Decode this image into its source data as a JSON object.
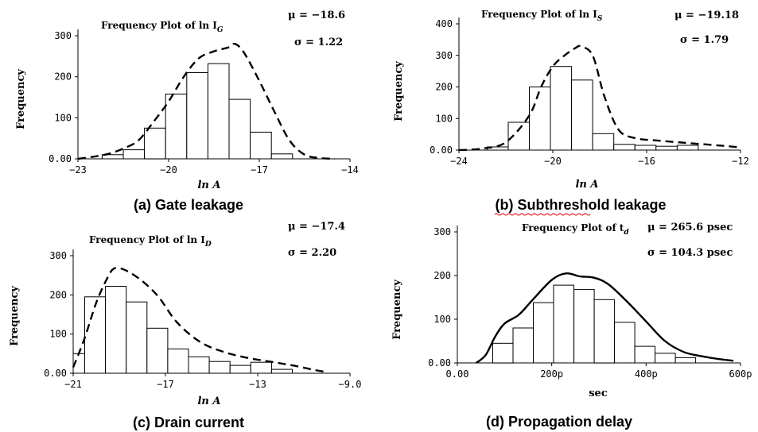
{
  "chart_data": [
    {
      "type": "bar",
      "panel": "a",
      "title": "Frequency Plot of ln I",
      "title_sub": "G",
      "ylabel": "Frequency",
      "xlabel": "ln A",
      "caption": "(a) Gate leakage",
      "stats": [
        "μ = −18.6",
        "σ = 1.22"
      ],
      "xlim": [
        -23,
        -14
      ],
      "ylim": [
        0,
        300
      ],
      "xticks": [
        -23,
        -20,
        -17,
        -14
      ],
      "xtick_labels": [
        "−23",
        "−20",
        "−17",
        "−14"
      ],
      "yticks": [
        0,
        100,
        200,
        300
      ],
      "ytick_labels": [
        "0.00",
        "100",
        "200",
        "300"
      ],
      "bin_edges": [
        -22.2,
        -21.5,
        -20.8,
        -20.1,
        -19.4,
        -18.7,
        -18.0,
        -17.3,
        -16.6,
        -15.9
      ],
      "values": [
        10,
        22,
        75,
        158,
        210,
        232,
        145,
        65,
        12
      ],
      "curve_style": "dashed",
      "curve": [
        [
          -23,
          0
        ],
        [
          -22.5,
          5
        ],
        [
          -22,
          12
        ],
        [
          -21.5,
          25
        ],
        [
          -21,
          45
        ],
        [
          -20.5,
          90
        ],
        [
          -20,
          140
        ],
        [
          -19.5,
          200
        ],
        [
          -19,
          245
        ],
        [
          -18.5,
          262
        ],
        [
          -18,
          272
        ],
        [
          -17.8,
          280
        ],
        [
          -17.5,
          258
        ],
        [
          -17,
          190
        ],
        [
          -16.5,
          115
        ],
        [
          -16,
          45
        ],
        [
          -15.5,
          10
        ],
        [
          -15,
          2
        ],
        [
          -14.5,
          0
        ]
      ]
    },
    {
      "type": "bar",
      "panel": "b",
      "title": "Frequency Plot of ln I",
      "title_sub": "S",
      "ylabel": "Frequency",
      "xlabel": "ln A",
      "caption": "(b) Subthreshold leakage",
      "stats": [
        "μ = −19.18",
        "σ = 1.79"
      ],
      "xlim": [
        -24,
        -12
      ],
      "ylim": [
        0,
        400
      ],
      "xticks": [
        -24,
        -20,
        -16,
        -12
      ],
      "xtick_labels": [
        "−24",
        "−20",
        "−16",
        "−12"
      ],
      "yticks": [
        0,
        100,
        200,
        300,
        400
      ],
      "ytick_labels": [
        "0.00",
        "100",
        "200",
        "300",
        "400"
      ],
      "bin_edges": [
        -22.8,
        -21.9,
        -21.0,
        -20.1,
        -19.2,
        -18.3,
        -17.4,
        -16.5,
        -15.6,
        -14.7,
        -13.8,
        -12.9
      ],
      "values": [
        10,
        88,
        200,
        265,
        222,
        52,
        18,
        15,
        12,
        15,
        0
      ],
      "curve_style": "dashed",
      "curve": [
        [
          -24,
          0
        ],
        [
          -23,
          5
        ],
        [
          -22,
          25
        ],
        [
          -21,
          110
        ],
        [
          -20.5,
          200
        ],
        [
          -20,
          265
        ],
        [
          -19.5,
          300
        ],
        [
          -19,
          325
        ],
        [
          -18.8,
          328
        ],
        [
          -18.3,
          300
        ],
        [
          -17.8,
          170
        ],
        [
          -17.2,
          65
        ],
        [
          -16.5,
          38
        ],
        [
          -15.5,
          30
        ],
        [
          -14.5,
          24
        ],
        [
          -13.5,
          18
        ],
        [
          -12.5,
          12
        ],
        [
          -12,
          8
        ]
      ]
    },
    {
      "type": "bar",
      "panel": "c",
      "title": "Frequency Plot of ln I",
      "title_sub": "D",
      "ylabel": "Frequency",
      "xlabel": "ln A",
      "caption": "(c) Drain current",
      "stats": [
        "μ = −17.4",
        "σ = 2.20"
      ],
      "xlim": [
        -21,
        -9
      ],
      "ylim": [
        0,
        300
      ],
      "xticks": [
        -21,
        -17,
        -13,
        -9
      ],
      "xtick_labels": [
        "−21",
        "−17",
        "−13",
        "−9.0"
      ],
      "yticks": [
        0,
        100,
        200,
        300
      ],
      "ytick_labels": [
        "0.00",
        "100",
        "200",
        "300"
      ],
      "bin_edges": [
        -21,
        -20.5,
        -19.6,
        -18.7,
        -17.8,
        -16.9,
        -16.0,
        -15.1,
        -14.2,
        -13.3,
        -12.4,
        -11.5,
        -10.6
      ],
      "values": [
        50,
        195,
        222,
        182,
        115,
        62,
        42,
        30,
        20,
        28,
        10,
        0
      ],
      "curve_style": "dashed",
      "curve": [
        [
          -21,
          15
        ],
        [
          -20.5,
          90
        ],
        [
          -20,
          180
        ],
        [
          -19.5,
          245
        ],
        [
          -19.2,
          268
        ],
        [
          -18.7,
          262
        ],
        [
          -18,
          235
        ],
        [
          -17.3,
          195
        ],
        [
          -16.5,
          130
        ],
        [
          -15.5,
          80
        ],
        [
          -14.5,
          55
        ],
        [
          -13.5,
          40
        ],
        [
          -12.5,
          30
        ],
        [
          -11.5,
          20
        ],
        [
          -10.5,
          8
        ],
        [
          -10,
          3
        ]
      ]
    },
    {
      "type": "bar",
      "panel": "d",
      "title": "Frequency Plot of t",
      "title_sub": "d",
      "ylabel": "Frequency",
      "xlabel": "sec",
      "caption": "(d) Propagation delay",
      "stats": [
        "μ = 265.6 psec",
        "σ = 104.3 psec"
      ],
      "xlim": [
        0,
        600
      ],
      "ylim": [
        0,
        300
      ],
      "xticks": [
        0,
        200,
        400,
        600
      ],
      "xtick_labels": [
        "0.00",
        "200p",
        "400p",
        "600p"
      ],
      "yticks": [
        0,
        100,
        200,
        300
      ],
      "ytick_labels": [
        "0.00",
        "100",
        "200",
        "300"
      ],
      "bin_edges": [
        75,
        118,
        161,
        204,
        247,
        290,
        333,
        376,
        419,
        462,
        505
      ],
      "values": [
        45,
        80,
        138,
        178,
        168,
        145,
        93,
        38,
        22,
        12
      ],
      "curve_style": "solid",
      "curve": [
        [
          40,
          0
        ],
        [
          60,
          18
        ],
        [
          80,
          60
        ],
        [
          100,
          90
        ],
        [
          130,
          110
        ],
        [
          160,
          145
        ],
        [
          200,
          190
        ],
        [
          230,
          205
        ],
        [
          260,
          198
        ],
        [
          290,
          195
        ],
        [
          320,
          180
        ],
        [
          360,
          140
        ],
        [
          400,
          95
        ],
        [
          440,
          50
        ],
        [
          480,
          25
        ],
        [
          520,
          15
        ],
        [
          560,
          8
        ],
        [
          585,
          5
        ]
      ]
    }
  ]
}
